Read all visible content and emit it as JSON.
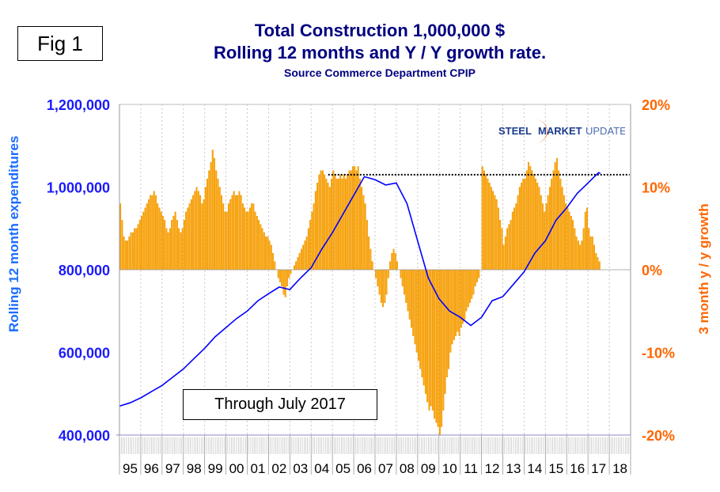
{
  "fig_label": "Fig 1",
  "title_line1": "Total Construction 1,000,000 $",
  "title_line2": "Rolling 12 months and Y / Y growth rate.",
  "subtitle": "Source Commerce Department CPIP",
  "annotation": "Through July 2017",
  "logo_text": {
    "a": "STEEL",
    "b": "MARKET",
    "c": "UPDATE"
  },
  "colors": {
    "bars": "#ffa500",
    "line": "#0000ff",
    "left_axis": "#1a1aff",
    "right_axis": "#ff6600",
    "title": "#000080"
  },
  "chart_data": {
    "type": "bar+line",
    "title": "Total Construction 1,000,000 $ Rolling 12 months and Y / Y growth rate.",
    "ylabel_left": "Rolling 12 month expenditures",
    "ylabel_right": "3 month y / y growth",
    "ylim_left": [
      400000,
      1200000
    ],
    "ylim_right": [
      -20,
      20
    ],
    "yticks_left": [
      "1,200,000",
      "1,000,000",
      "800,000",
      "600,000",
      "400,000"
    ],
    "yticks_right": [
      "20%",
      "10%",
      "0%",
      "-10%",
      "-20%"
    ],
    "xticks": [
      "95",
      "96",
      "97",
      "98",
      "99",
      "00",
      "01",
      "02",
      "03",
      "04",
      "05",
      "06",
      "07",
      "08",
      "09",
      "10",
      "11",
      "12",
      "13",
      "14",
      "15",
      "16",
      "17",
      "18"
    ],
    "xlim_years": [
      1995,
      2019
    ],
    "growth_start": "1995-01",
    "growth_monthly_pct": [
      8,
      6,
      4,
      3.5,
      3.5,
      4,
      4.5,
      4.5,
      5,
      5,
      5.5,
      6,
      6.5,
      7,
      7.5,
      8,
      8.5,
      9,
      9,
      9.5,
      9,
      8,
      7.5,
      7,
      6.5,
      6,
      5,
      4.5,
      5,
      6,
      6.5,
      7,
      6,
      5,
      4.5,
      5,
      6,
      7,
      7.5,
      8,
      8.5,
      9,
      9.5,
      10,
      9.5,
      9,
      8,
      8.5,
      10,
      11,
      12,
      13,
      14.5,
      13.5,
      12,
      11,
      10,
      9,
      8,
      7,
      7,
      8,
      8.5,
      9,
      9.5,
      9,
      9,
      9.5,
      9,
      8,
      7.5,
      7,
      7,
      7.5,
      8,
      8,
      7,
      6.5,
      6,
      5.5,
      5,
      4.5,
      4,
      4,
      3.5,
      3,
      2,
      1,
      0,
      -1,
      -1.5,
      -2,
      -3,
      -3.3,
      -2,
      -1,
      -0.5,
      0,
      0.5,
      1,
      1.5,
      2,
      2.5,
      3,
      3.5,
      4,
      5,
      6,
      7,
      8,
      9.5,
      10.5,
      11.5,
      12,
      12,
      11.5,
      11,
      10.5,
      10,
      11,
      12,
      11.5,
      11,
      11,
      11.5,
      11,
      11.5,
      11,
      11.5,
      12,
      12,
      12.5,
      12.5,
      12,
      12.5,
      11,
      10,
      9,
      8,
      6,
      4,
      2.5,
      1,
      0,
      -1,
      -2,
      -3,
      -4,
      -4.5,
      -4,
      -3,
      -1,
      1,
      2,
      2.5,
      2,
      1,
      0,
      -1,
      -2,
      -3,
      -4,
      -5,
      -6,
      -7,
      -8,
      -9,
      -10,
      -11,
      -12,
      -13,
      -14,
      -15,
      -16,
      -17,
      -16.5,
      -17,
      -18,
      -18.5,
      -19,
      -20,
      -19,
      -17,
      -15,
      -13,
      -12,
      -10,
      -9,
      -8.5,
      -8,
      -7.5,
      -8,
      -7,
      -6.5,
      -6,
      -5,
      -4.5,
      -4,
      -3.5,
      -3,
      -2,
      -1.5,
      -1,
      0,
      12.5,
      12,
      11.5,
      11,
      10.5,
      10,
      9.5,
      9,
      8.5,
      7.5,
      6,
      5,
      3,
      4,
      5,
      5.5,
      6,
      7,
      7.5,
      8,
      9,
      10,
      10.5,
      11,
      11,
      12,
      13,
      12.5,
      12,
      11.5,
      11,
      10.5,
      10,
      9,
      8,
      7,
      8,
      9,
      10,
      11,
      12,
      13,
      13.5,
      12,
      11,
      10,
      9,
      8,
      7.5,
      7,
      6.5,
      6,
      5,
      4,
      3.5,
      3,
      3.5,
      5,
      7,
      7.5,
      5,
      4,
      4,
      3,
      2,
      1.5,
      1
    ],
    "rolling12_points": [
      [
        1995.0,
        470000
      ],
      [
        1995.5,
        478000
      ],
      [
        1996.0,
        490000
      ],
      [
        1996.5,
        505000
      ],
      [
        1997.0,
        520000
      ],
      [
        1997.5,
        540000
      ],
      [
        1998.0,
        560000
      ],
      [
        1998.5,
        585000
      ],
      [
        1999.0,
        610000
      ],
      [
        1999.5,
        638000
      ],
      [
        2000.0,
        660000
      ],
      [
        2000.5,
        682000
      ],
      [
        2001.0,
        700000
      ],
      [
        2001.5,
        725000
      ],
      [
        2002.0,
        742000
      ],
      [
        2002.5,
        758000
      ],
      [
        2003.0,
        752000
      ],
      [
        2003.5,
        780000
      ],
      [
        2004.0,
        805000
      ],
      [
        2004.5,
        850000
      ],
      [
        2005.0,
        890000
      ],
      [
        2005.5,
        935000
      ],
      [
        2006.0,
        980000
      ],
      [
        2006.5,
        1025000
      ],
      [
        2007.0,
        1018000
      ],
      [
        2007.5,
        1005000
      ],
      [
        2008.0,
        1010000
      ],
      [
        2008.5,
        960000
      ],
      [
        2009.0,
        870000
      ],
      [
        2009.5,
        780000
      ],
      [
        2010.0,
        730000
      ],
      [
        2010.5,
        700000
      ],
      [
        2011.0,
        685000
      ],
      [
        2011.5,
        665000
      ],
      [
        2012.0,
        685000
      ],
      [
        2012.5,
        725000
      ],
      [
        2013.0,
        735000
      ],
      [
        2013.5,
        765000
      ],
      [
        2014.0,
        795000
      ],
      [
        2014.5,
        840000
      ],
      [
        2015.0,
        870000
      ],
      [
        2015.5,
        920000
      ],
      [
        2016.0,
        950000
      ],
      [
        2016.5,
        985000
      ],
      [
        2017.0,
        1010000
      ],
      [
        2017.5,
        1035000
      ],
      [
        2017.58,
        1033000
      ]
    ],
    "reference_line": {
      "value": 1030000,
      "from_year": 2004.8,
      "to_year": 2018.95,
      "style": "dotted"
    }
  }
}
